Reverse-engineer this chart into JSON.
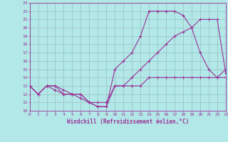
{
  "xlabel": "Windchill (Refroidissement éolien,°C)",
  "bg_color": "#b2e8e8",
  "line_color": "#993399",
  "grid_color": "#9bbfbf",
  "xmin": 0,
  "xmax": 23,
  "ymin": 10,
  "ymax": 23,
  "line1_x": [
    0,
    1,
    2,
    3,
    4,
    5,
    6,
    7,
    8,
    9,
    10,
    11,
    12,
    13,
    14,
    15,
    16,
    17,
    18,
    19,
    20,
    21,
    22,
    23
  ],
  "line1_y": [
    13,
    12,
    13,
    13,
    12,
    12,
    11.5,
    11,
    10.5,
    10.5,
    13,
    13,
    13,
    13,
    14,
    14,
    14,
    14,
    14,
    14,
    14,
    14,
    14,
    14
  ],
  "line2_x": [
    0,
    1,
    2,
    3,
    4,
    5,
    6,
    7,
    8,
    9,
    10,
    11,
    12,
    13,
    14,
    15,
    16,
    17,
    18,
    19,
    20,
    21,
    22,
    23
  ],
  "line2_y": [
    13,
    12,
    13,
    13,
    12.5,
    12,
    12,
    11,
    10.5,
    10.5,
    15,
    16,
    17,
    19,
    22,
    22,
    22,
    22,
    21.5,
    20,
    17,
    15,
    14,
    15
  ],
  "line3_x": [
    0,
    1,
    2,
    3,
    4,
    5,
    6,
    7,
    8,
    9,
    10,
    11,
    12,
    13,
    14,
    15,
    16,
    17,
    18,
    19,
    20,
    21,
    22,
    23
  ],
  "line3_y": [
    13,
    12,
    13,
    12.5,
    12,
    12,
    12,
    11,
    11,
    11,
    13,
    13,
    14,
    15,
    16,
    17,
    18,
    19,
    19.5,
    20,
    21,
    21,
    21,
    14.5
  ]
}
